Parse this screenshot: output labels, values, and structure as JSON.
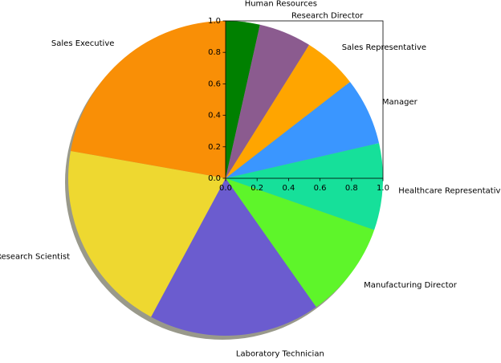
{
  "chart_data": {
    "type": "pie",
    "title": "",
    "start_angle_deg": 90,
    "counterclockwise": false,
    "shadow": true,
    "slices": [
      {
        "label": "Human Resources",
        "value": 3.5,
        "color": "#008000"
      },
      {
        "label": "Research Director",
        "value": 5.4,
        "color": "#8b5b8f"
      },
      {
        "label": "Sales Representative",
        "value": 5.6,
        "color": "#ffa500"
      },
      {
        "label": "Manager",
        "value": 6.9,
        "color": "#3a96ff"
      },
      {
        "label": "Healthcare Representative",
        "value": 8.9,
        "color": "#16e09a"
      },
      {
        "label": "Manufacturing Director",
        "value": 9.9,
        "color": "#5ef52a"
      },
      {
        "label": "Laboratory Technician",
        "value": 17.6,
        "color": "#6b5ccf"
      },
      {
        "label": "Research Scientist",
        "value": 19.9,
        "color": "#eed830"
      },
      {
        "label": "Sales Executive",
        "value": 22.2,
        "color": "#f98f06"
      }
    ],
    "inset_axes": {
      "xlim": [
        0.0,
        1.0
      ],
      "ylim": [
        0.0,
        1.0
      ],
      "x_ticks": [
        "0.0",
        "0.2",
        "0.4",
        "0.6",
        "0.8",
        "1.0"
      ],
      "y_ticks": [
        "0.0",
        "0.2",
        "0.4",
        "0.6",
        "0.8",
        "1.0"
      ]
    }
  }
}
